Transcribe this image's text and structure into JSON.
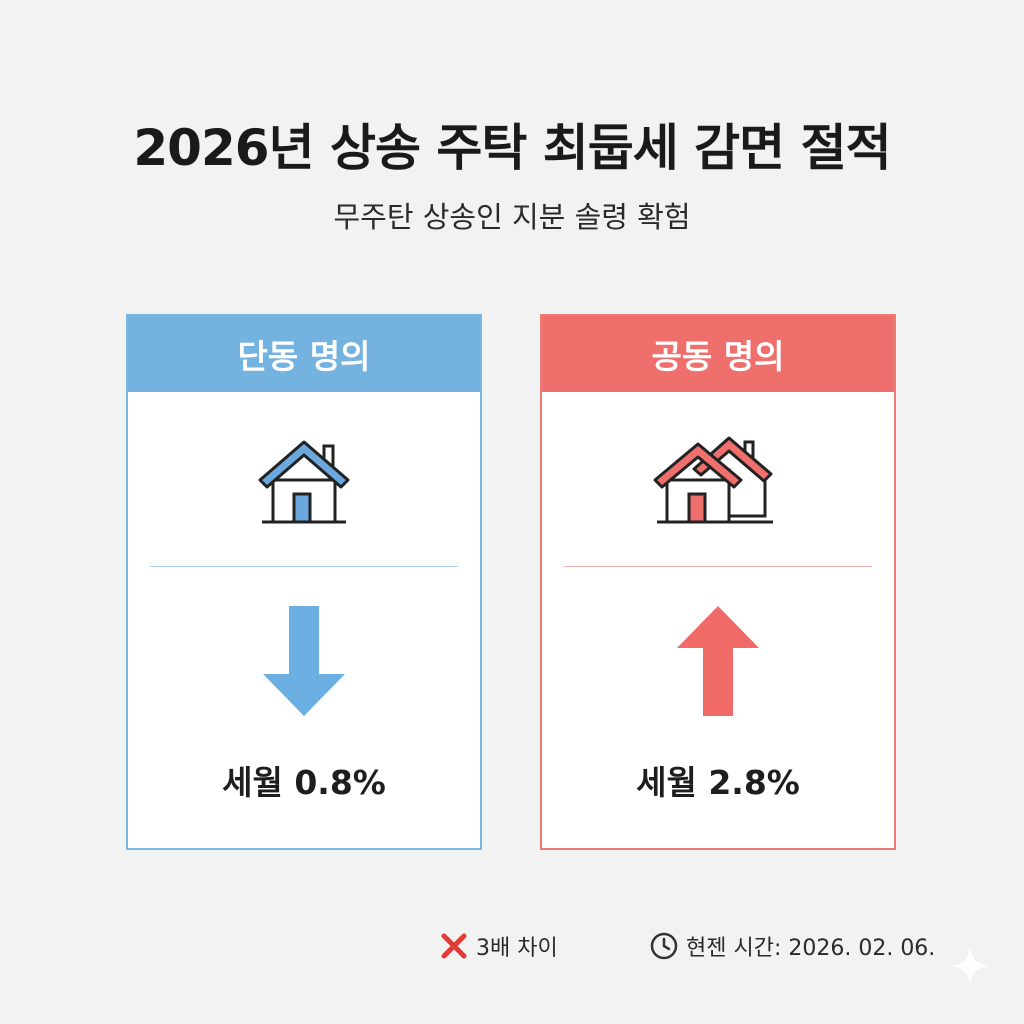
{
  "title": "2026년 상송 주탁 최둡세 감면 절적",
  "subtitle": "무주탄 상송인 지분 솔령 확험",
  "cards": [
    {
      "header": "단동 명의",
      "rate": "세월 0.8%",
      "direction": "down",
      "house_icon": "single-house-icon",
      "color": "#74b2e0"
    },
    {
      "header": "공동 명의",
      "rate": "세월 2.8%",
      "direction": "up",
      "house_icon": "double-house-icon",
      "color": "#ef6f6d"
    }
  ],
  "footer": {
    "difference": "3배 차이",
    "difference_icon": "x-mark-icon",
    "time_label": "현젠 시간: 2026. 02. 06.",
    "time_icon": "clock-icon"
  }
}
